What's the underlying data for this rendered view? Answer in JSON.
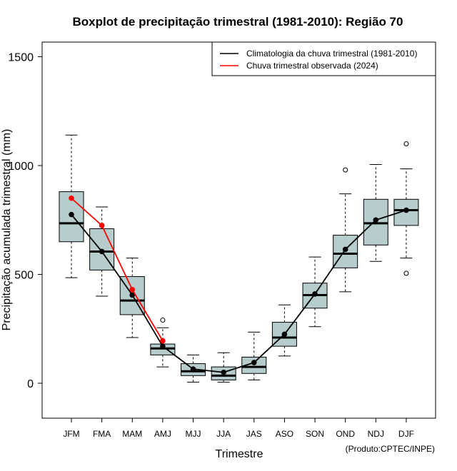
{
  "chart_data": {
    "type": "boxplot",
    "title": "Boxplot de precipitação trimestral (1981-2010): Região 70",
    "xlabel": "Trimestre",
    "ylabel": "Precipitação acumulada trimestral (mm)",
    "ylim": [
      -165,
      1520
    ],
    "yticks": [
      0,
      500,
      1000,
      1500
    ],
    "credit": "(Produto:CPTEC/INPE)",
    "categories": [
      "JFM",
      "FMA",
      "MAM",
      "AMJ",
      "MJJ",
      "JJA",
      "JAS",
      "ASO",
      "SON",
      "OND",
      "NDJ",
      "DJF"
    ],
    "boxes": [
      {
        "min": 485,
        "q1": 650,
        "median": 735,
        "q3": 880,
        "max": 1140,
        "outliers": []
      },
      {
        "min": 400,
        "q1": 520,
        "median": 605,
        "q3": 710,
        "max": 810,
        "outliers": []
      },
      {
        "min": 210,
        "q1": 315,
        "median": 380,
        "q3": 490,
        "max": 575,
        "outliers": []
      },
      {
        "min": 75,
        "q1": 130,
        "median": 160,
        "q3": 180,
        "max": 255,
        "outliers": [
          290
        ]
      },
      {
        "min": 5,
        "q1": 35,
        "median": 55,
        "q3": 90,
        "max": 130,
        "outliers": []
      },
      {
        "min": 5,
        "q1": 15,
        "median": 35,
        "q3": 75,
        "max": 140,
        "outliers": []
      },
      {
        "min": 15,
        "q1": 45,
        "median": 75,
        "q3": 120,
        "max": 235,
        "outliers": []
      },
      {
        "min": 125,
        "q1": 170,
        "median": 210,
        "q3": 280,
        "max": 360,
        "outliers": []
      },
      {
        "min": 260,
        "q1": 345,
        "median": 405,
        "q3": 460,
        "max": 580,
        "outliers": []
      },
      {
        "min": 420,
        "q1": 530,
        "median": 595,
        "q3": 680,
        "max": 870,
        "outliers": [
          980
        ]
      },
      {
        "min": 560,
        "q1": 635,
        "median": 735,
        "q3": 845,
        "max": 1005,
        "outliers": []
      },
      {
        "min": 575,
        "q1": 725,
        "median": 795,
        "q3": 845,
        "max": 985,
        "outliers": [
          1100,
          505
        ]
      }
    ],
    "series": [
      {
        "name": "Climatologia da chuva trimestral (1981-2010)",
        "color": "#000000",
        "values": [
          775,
          605,
          405,
          170,
          65,
          50,
          95,
          225,
          410,
          615,
          750,
          795
        ]
      },
      {
        "name": "Chuva trimestral observada (2024)",
        "color": "#ff0000",
        "values": [
          850,
          725,
          430,
          195
        ]
      }
    ],
    "box_fill": "#b7cccc"
  }
}
